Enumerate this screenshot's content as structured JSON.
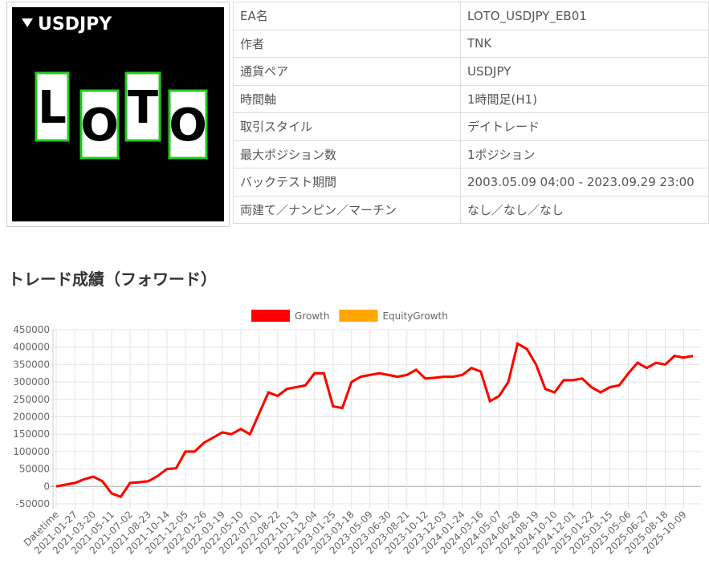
{
  "logo": {
    "title": "USDJPY",
    "letters": [
      "L",
      "O",
      "T",
      "O"
    ]
  },
  "table": {
    "rows": [
      [
        "EA名",
        "LOTO_USDJPY_EB01"
      ],
      [
        "作者",
        "TNK"
      ],
      [
        "通貨ペア",
        "USDJPY"
      ],
      [
        "時間軸",
        "1時間足(H1)"
      ],
      [
        "取引スタイル",
        "デイトレード"
      ],
      [
        "最大ポジション数",
        "1ポジション"
      ],
      [
        "バックテスト期間",
        "2003.05.09 04:00 - 2023.09.29 23:00"
      ],
      [
        "両建て／ナンピン／マーチン",
        "なし／なし／なし"
      ]
    ]
  },
  "section_title": "トレード成績（フォワード）",
  "chart_data": {
    "type": "line",
    "grid": true,
    "legend": "top",
    "categories": [
      "Datetime",
      null,
      "2021-01-27",
      null,
      "2021-03-20",
      null,
      "2021-05-11",
      null,
      "2021-07-02",
      null,
      "2021-08-23",
      null,
      "2021-10-14",
      null,
      "2021-12-05",
      null,
      "2022-01-26",
      null,
      "2022-03-19",
      null,
      "2022-05-10",
      null,
      "2022-07-01",
      null,
      "2022-08-22",
      null,
      "2022-10-13",
      null,
      "2022-12-04",
      null,
      "2023-01-25",
      null,
      "2023-03-18",
      null,
      "2023-05-09",
      null,
      "2023-06-30",
      null,
      "2023-08-21",
      null,
      "2023-10-12",
      null,
      "2023-12-03",
      null,
      "2024-01-24",
      null,
      "2024-03-16",
      null,
      "2024-05-07",
      null,
      "2024-06-28",
      null,
      "2024-08-19",
      null,
      "2024-10-10",
      null,
      "2024-12-01",
      null,
      "2025-01-22",
      null,
      "2025-03-15",
      null,
      "2025-05-06",
      null,
      "2025-06-27",
      null,
      "2025-08-18",
      null,
      "2025-10-09",
      null
    ],
    "series": [
      {
        "name": "Growth",
        "color": "#ff0000",
        "values": [
          0,
          5000,
          10000,
          20000,
          28000,
          15000,
          -20000,
          -30000,
          10000,
          12000,
          15000,
          30000,
          50000,
          52000,
          100000,
          100000,
          125000,
          140000,
          155000,
          150000,
          165000,
          150000,
          210000,
          270000,
          260000,
          280000,
          285000,
          290000,
          325000,
          325000,
          230000,
          225000,
          300000,
          315000,
          320000,
          325000,
          320000,
          315000,
          320000,
          335000,
          310000,
          312000,
          315000,
          315000,
          320000,
          340000,
          330000,
          245000,
          260000,
          300000,
          410000,
          395000,
          350000,
          280000,
          270000,
          305000,
          305000,
          310000,
          285000,
          270000,
          285000,
          290000,
          325000,
          355000,
          340000,
          355000,
          350000,
          375000,
          370000,
          375000
        ]
      },
      {
        "name": "EquityGrowth",
        "color": "#ffa500",
        "values": [
          0,
          5000,
          10000,
          20000,
          28000,
          15000,
          -20000,
          -30000,
          10000,
          12000,
          15000,
          30000,
          50000,
          52000,
          100000,
          100000,
          125000,
          140000,
          155000,
          150000,
          165000,
          150000,
          210000,
          270000,
          260000,
          280000,
          285000,
          290000,
          325000,
          325000,
          230000,
          225000,
          300000,
          315000,
          320000,
          325000,
          320000,
          315000,
          320000,
          335000,
          310000,
          312000,
          315000,
          315000,
          320000,
          340000,
          330000,
          245000,
          260000,
          300000,
          410000,
          395000,
          350000,
          280000,
          270000,
          305000,
          305000,
          310000,
          285000,
          270000,
          285000,
          290000,
          325000,
          355000,
          340000,
          355000,
          350000,
          375000,
          370000,
          375000
        ]
      }
    ],
    "ylim": [
      -50000,
      450000
    ],
    "yticks": [
      -50000,
      0,
      50000,
      100000,
      150000,
      200000,
      250000,
      300000,
      350000,
      400000,
      450000
    ]
  }
}
